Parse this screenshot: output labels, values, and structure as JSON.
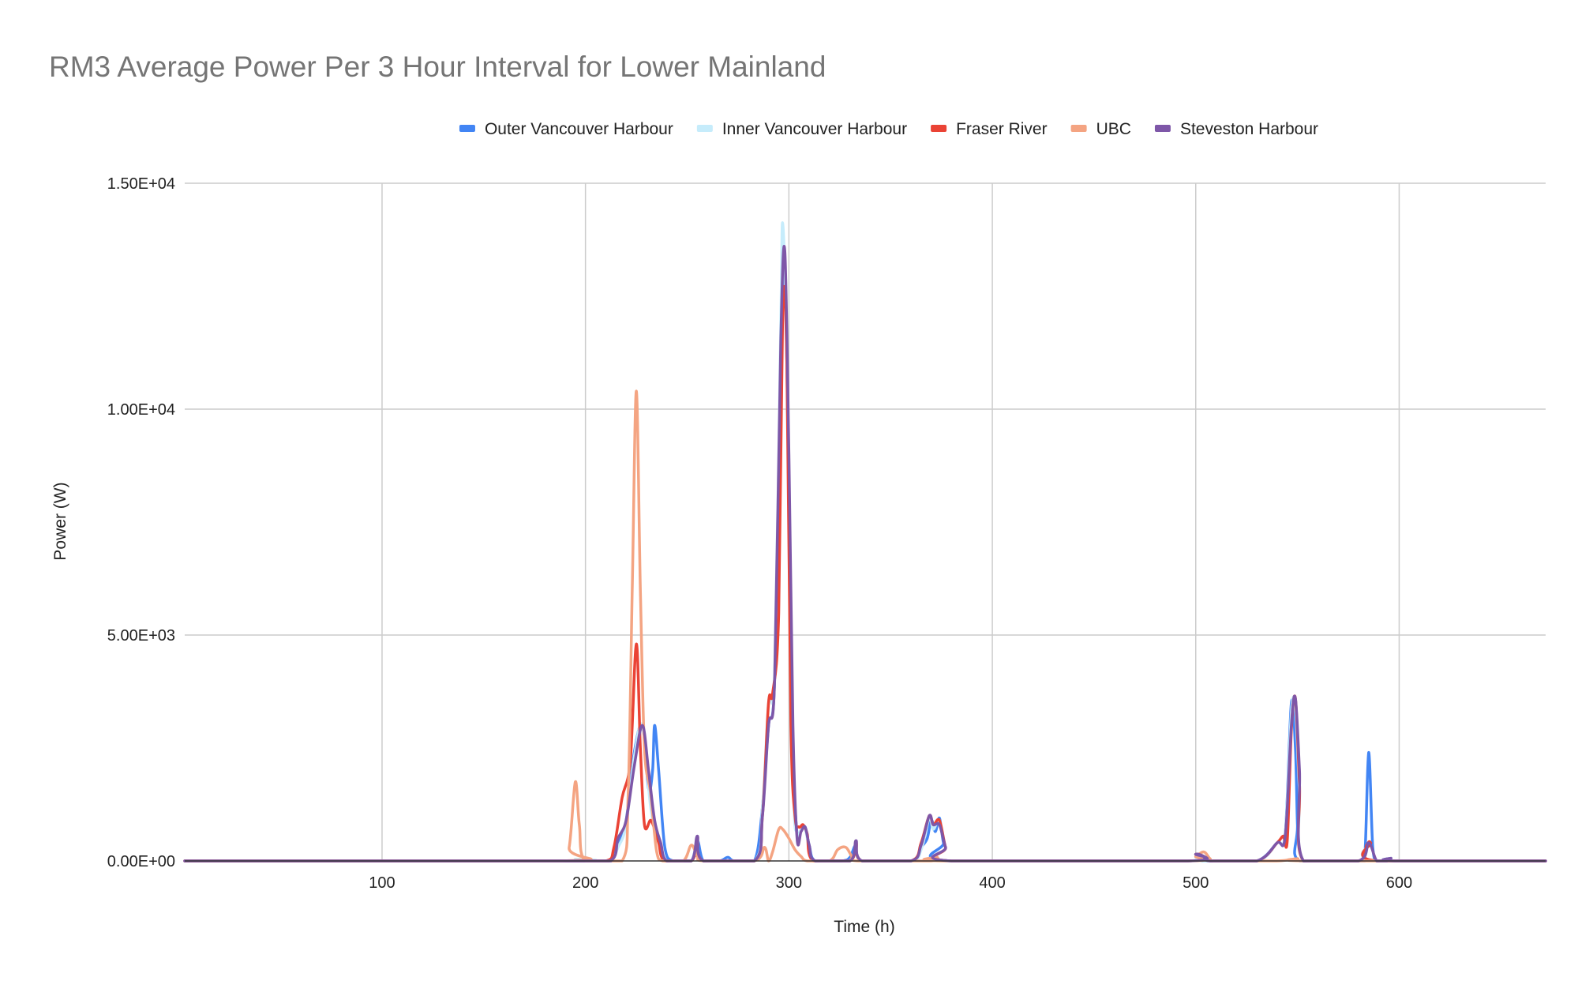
{
  "chart_data": {
    "type": "line",
    "title": "RM3 Average Power Per 3 Hour Interval for Lower Mainland",
    "xlabel": "Time (h)",
    "ylabel": "Power (W)",
    "xlim": [
      3,
      672
    ],
    "ylim": [
      0,
      15000
    ],
    "x_ticks": [
      100,
      200,
      300,
      400,
      500,
      600
    ],
    "y_ticks": [
      0,
      5000,
      10000,
      15000
    ],
    "x_tick_labels": [
      "100",
      "200",
      "300",
      "400",
      "500",
      "600"
    ],
    "y_tick_labels": [
      "0.00E+00",
      "5.00E+03",
      "1.00E+04",
      "1.50E+04"
    ],
    "grid": true,
    "legend_position": "top",
    "series": [
      {
        "name": "Outer Vancouver Harbour",
        "color": "#4285f4",
        "points": [
          [
            3,
            0
          ],
          [
            190,
            0
          ],
          [
            195,
            0
          ],
          [
            200,
            0
          ],
          [
            212,
            0
          ],
          [
            216,
            400
          ],
          [
            220,
            900
          ],
          [
            224,
            2400
          ],
          [
            228,
            3000
          ],
          [
            231,
            1600
          ],
          [
            233,
            2000
          ],
          [
            234,
            3000
          ],
          [
            236,
            2000
          ],
          [
            239,
            300
          ],
          [
            243,
            0
          ],
          [
            252,
            0
          ],
          [
            255,
            450
          ],
          [
            258,
            0
          ],
          [
            266,
            0
          ],
          [
            270,
            80
          ],
          [
            273,
            0
          ],
          [
            283,
            0
          ],
          [
            287,
            1200
          ],
          [
            290,
            3000
          ],
          [
            293,
            4000
          ],
          [
            296,
            11000
          ],
          [
            298,
            13200
          ],
          [
            300,
            8000
          ],
          [
            302,
            2500
          ],
          [
            304,
            600
          ],
          [
            306,
            700
          ],
          [
            308,
            750
          ],
          [
            310,
            350
          ],
          [
            313,
            0
          ],
          [
            326,
            0
          ],
          [
            330,
            80
          ],
          [
            333,
            350
          ],
          [
            336,
            0
          ],
          [
            360,
            0
          ],
          [
            365,
            300
          ],
          [
            368,
            500
          ],
          [
            370,
            900
          ],
          [
            372,
            650
          ],
          [
            374,
            950
          ],
          [
            376,
            400
          ],
          [
            379,
            0
          ],
          [
            496,
            0
          ],
          [
            500,
            150
          ],
          [
            503,
            0
          ],
          [
            510,
            0
          ],
          [
            530,
            0
          ],
          [
            540,
            400
          ],
          [
            544,
            600
          ],
          [
            547,
            3500
          ],
          [
            549,
            2500
          ],
          [
            550,
            800
          ],
          [
            551,
            0
          ],
          [
            580,
            0
          ],
          [
            583,
            0
          ],
          [
            585,
            2400
          ],
          [
            587,
            300
          ],
          [
            589,
            0
          ],
          [
            594,
            0
          ],
          [
            596,
            60
          ],
          [
            598,
            0
          ],
          [
            672,
            0
          ]
        ]
      },
      {
        "name": "Inner Vancouver Harbour",
        "color": "#c6ecfb",
        "points": [
          [
            3,
            0
          ],
          [
            190,
            0
          ],
          [
            195,
            40
          ],
          [
            200,
            0
          ],
          [
            212,
            0
          ],
          [
            216,
            300
          ],
          [
            220,
            800
          ],
          [
            224,
            2300
          ],
          [
            228,
            3000
          ],
          [
            232,
            1200
          ],
          [
            236,
            400
          ],
          [
            240,
            0
          ],
          [
            252,
            0
          ],
          [
            255,
            500
          ],
          [
            258,
            0
          ],
          [
            283,
            0
          ],
          [
            287,
            1200
          ],
          [
            290,
            3500
          ],
          [
            293,
            4200
          ],
          [
            296,
            12000
          ],
          [
            297,
            14100
          ],
          [
            299,
            11000
          ],
          [
            302,
            2000
          ],
          [
            304,
            600
          ],
          [
            306,
            700
          ],
          [
            308,
            700
          ],
          [
            310,
            300
          ],
          [
            313,
            0
          ],
          [
            330,
            0
          ],
          [
            333,
            350
          ],
          [
            336,
            0
          ],
          [
            360,
            0
          ],
          [
            365,
            250
          ],
          [
            369,
            950
          ],
          [
            371,
            700
          ],
          [
            374,
            900
          ],
          [
            377,
            300
          ],
          [
            380,
            0
          ],
          [
            496,
            0
          ],
          [
            500,
            150
          ],
          [
            503,
            0
          ],
          [
            530,
            0
          ],
          [
            540,
            400
          ],
          [
            544,
            600
          ],
          [
            547,
            3300
          ],
          [
            549,
            3400
          ],
          [
            551,
            1500
          ],
          [
            553,
            0
          ],
          [
            580,
            0
          ],
          [
            585,
            350
          ],
          [
            589,
            0
          ],
          [
            672,
            0
          ]
        ]
      },
      {
        "name": "Fraser River",
        "color": "#ea4335",
        "points": [
          [
            3,
            0
          ],
          [
            190,
            0
          ],
          [
            210,
            0
          ],
          [
            214,
            300
          ],
          [
            218,
            1400
          ],
          [
            222,
            2200
          ],
          [
            225,
            4800
          ],
          [
            227,
            2500
          ],
          [
            229,
            800
          ],
          [
            232,
            900
          ],
          [
            234,
            700
          ],
          [
            236,
            400
          ],
          [
            239,
            0
          ],
          [
            252,
            0
          ],
          [
            255,
            400
          ],
          [
            258,
            0
          ],
          [
            283,
            0
          ],
          [
            287,
            1000
          ],
          [
            290,
            3500
          ],
          [
            292,
            3700
          ],
          [
            295,
            5500
          ],
          [
            297,
            12300
          ],
          [
            299,
            11000
          ],
          [
            301,
            3000
          ],
          [
            303,
            1000
          ],
          [
            305,
            750
          ],
          [
            307,
            800
          ],
          [
            309,
            600
          ],
          [
            312,
            0
          ],
          [
            330,
            0
          ],
          [
            333,
            400
          ],
          [
            336,
            0
          ],
          [
            360,
            0
          ],
          [
            365,
            400
          ],
          [
            369,
            1000
          ],
          [
            371,
            800
          ],
          [
            374,
            900
          ],
          [
            377,
            300
          ],
          [
            380,
            0
          ],
          [
            496,
            0
          ],
          [
            500,
            150
          ],
          [
            504,
            100
          ],
          [
            507,
            0
          ],
          [
            530,
            0
          ],
          [
            540,
            400
          ],
          [
            543,
            550
          ],
          [
            545,
            450
          ],
          [
            547,
            2900
          ],
          [
            549,
            3600
          ],
          [
            551,
            1700
          ],
          [
            553,
            0
          ],
          [
            580,
            0
          ],
          [
            584,
            350
          ],
          [
            586,
            400
          ],
          [
            589,
            0
          ],
          [
            672,
            0
          ]
        ]
      },
      {
        "name": "UBC",
        "color": "#f4a482",
        "points": [
          [
            3,
            0
          ],
          [
            188,
            0
          ],
          [
            192,
            300
          ],
          [
            195,
            1750
          ],
          [
            197,
            800
          ],
          [
            200,
            0
          ],
          [
            218,
            0
          ],
          [
            221,
            1500
          ],
          [
            223,
            6000
          ],
          [
            225,
            10400
          ],
          [
            227,
            6000
          ],
          [
            229,
            2500
          ],
          [
            232,
            1500
          ],
          [
            235,
            200
          ],
          [
            238,
            0
          ],
          [
            248,
            0
          ],
          [
            252,
            350
          ],
          [
            255,
            100
          ],
          [
            258,
            0
          ],
          [
            283,
            0
          ],
          [
            288,
            300
          ],
          [
            290,
            0
          ],
          [
            292,
            200
          ],
          [
            295,
            700
          ],
          [
            297,
            700
          ],
          [
            300,
            500
          ],
          [
            303,
            250
          ],
          [
            306,
            100
          ],
          [
            309,
            0
          ],
          [
            320,
            0
          ],
          [
            324,
            250
          ],
          [
            328,
            300
          ],
          [
            331,
            100
          ],
          [
            334,
            0
          ],
          [
            370,
            0
          ],
          [
            373,
            80
          ],
          [
            376,
            0
          ],
          [
            496,
            0
          ],
          [
            500,
            100
          ],
          [
            504,
            200
          ],
          [
            507,
            50
          ],
          [
            510,
            0
          ],
          [
            540,
            0
          ],
          [
            550,
            50
          ],
          [
            555,
            0
          ],
          [
            672,
            0
          ]
        ]
      },
      {
        "name": "Steveston Harbour",
        "color": "#7e57a8",
        "points": [
          [
            3,
            0
          ],
          [
            190,
            0
          ],
          [
            212,
            0
          ],
          [
            216,
            500
          ],
          [
            220,
            900
          ],
          [
            224,
            2100
          ],
          [
            228,
            3000
          ],
          [
            231,
            2000
          ],
          [
            234,
            900
          ],
          [
            237,
            400
          ],
          [
            240,
            0
          ],
          [
            252,
            0
          ],
          [
            255,
            550
          ],
          [
            258,
            0
          ],
          [
            283,
            0
          ],
          [
            287,
            1000
          ],
          [
            290,
            3000
          ],
          [
            293,
            4000
          ],
          [
            296,
            11500
          ],
          [
            298,
            13500
          ],
          [
            300,
            9000
          ],
          [
            302,
            3000
          ],
          [
            304,
            500
          ],
          [
            306,
            650
          ],
          [
            308,
            750
          ],
          [
            310,
            350
          ],
          [
            313,
            0
          ],
          [
            330,
            0
          ],
          [
            333,
            450
          ],
          [
            336,
            0
          ],
          [
            360,
            0
          ],
          [
            365,
            350
          ],
          [
            369,
            1000
          ],
          [
            371,
            800
          ],
          [
            374,
            800
          ],
          [
            377,
            300
          ],
          [
            380,
            0
          ],
          [
            496,
            0
          ],
          [
            500,
            150
          ],
          [
            504,
            100
          ],
          [
            507,
            0
          ],
          [
            530,
            0
          ],
          [
            540,
            400
          ],
          [
            544,
            550
          ],
          [
            547,
            3000
          ],
          [
            549,
            3600
          ],
          [
            551,
            2000
          ],
          [
            553,
            0
          ],
          [
            580,
            0
          ],
          [
            585,
            400
          ],
          [
            589,
            0
          ],
          [
            594,
            0
          ],
          [
            596,
            60
          ],
          [
            598,
            0
          ],
          [
            672,
            0
          ]
        ]
      }
    ]
  }
}
